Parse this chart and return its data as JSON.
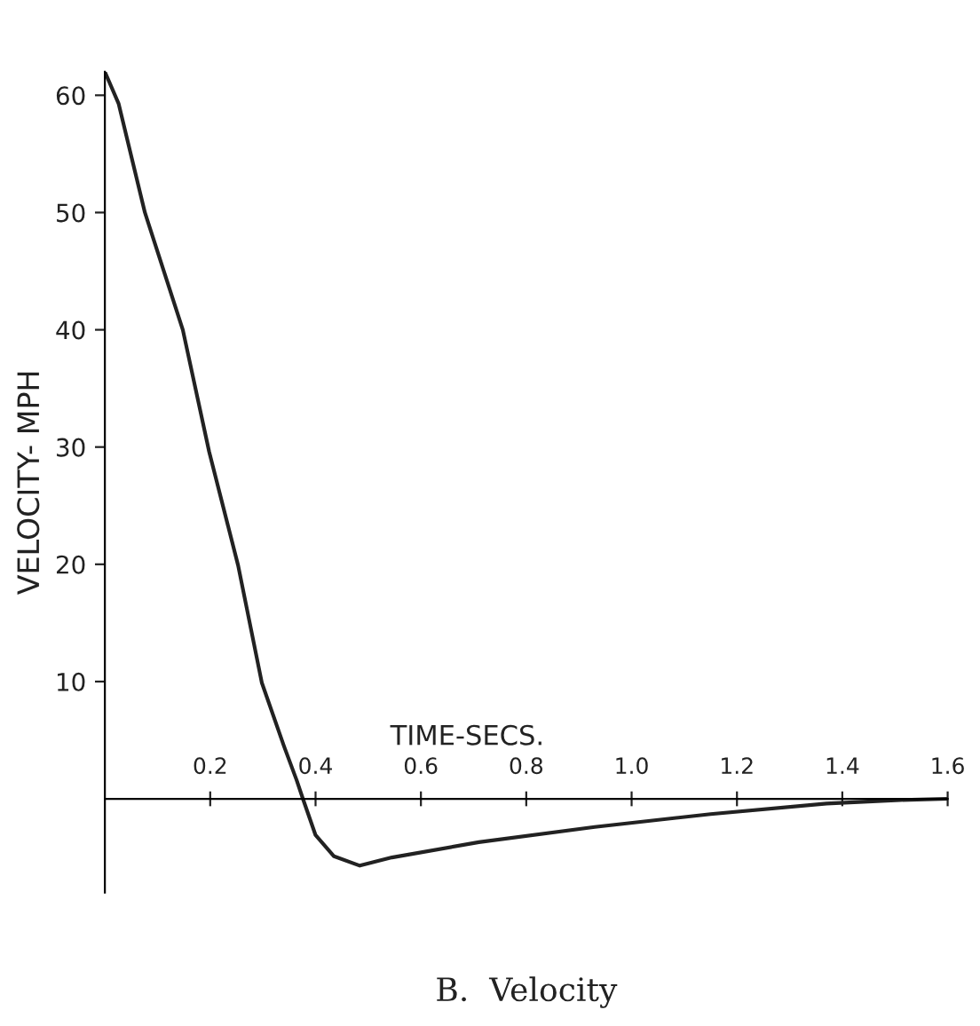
{
  "chart_data": {
    "type": "line",
    "title": "B.  Velocity",
    "xlabel": "TIME-SECS.",
    "ylabel": "VELOCITY- MPH",
    "series": [
      {
        "color": "#222222",
        "x": [
          0,
          0.026,
          0.076,
          0.148,
          0.198,
          0.253,
          0.298,
          0.34,
          0.364,
          0.376,
          0.4,
          0.435,
          0.484,
          0.545,
          0.71,
          0.93,
          1.15,
          1.37,
          1.51,
          1.6
        ],
        "values": [
          62,
          59.3,
          50,
          40,
          29.6,
          19.9,
          9.9,
          4.5,
          1.6,
          0,
          -3.1,
          -4.9,
          -5.7,
          -5.0,
          -3.7,
          -2.4,
          -1.3,
          -0.4,
          -0.1,
          0
        ]
      }
    ],
    "xlim": [
      0,
      1.6
    ],
    "ylim": [
      -8,
      62
    ],
    "xticks": [
      0.2,
      0.4,
      0.6,
      0.8,
      {
        "value": 1,
        "label": "1.0"
      },
      1.2,
      1.4,
      1.6
    ],
    "yticks": [
      10,
      20,
      30,
      40,
      50,
      60
    ],
    "grid": false,
    "marker": "none",
    "line_style": "solid"
  }
}
